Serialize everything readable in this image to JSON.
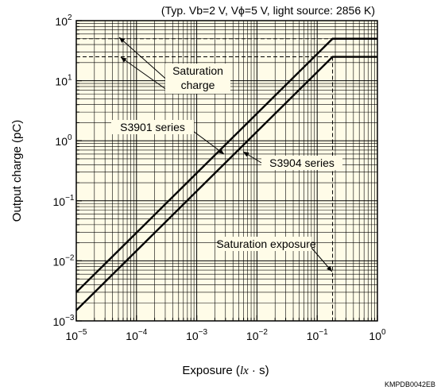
{
  "chart_data": {
    "type": "line",
    "title": "",
    "subtitle": "(Typ. Vb=2 V, Vϕ=5 V, light source: 2856 K)",
    "xlabel": "Exposure (lx · s)",
    "xlabel_parts": {
      "pre": "Exposure (",
      "unit": "lx",
      "post": " · s)"
    },
    "ylabel": "Output charge (pC)",
    "xscale": "log",
    "yscale": "log",
    "xlim": [
      1e-05,
      1
    ],
    "ylim": [
      0.001,
      100
    ],
    "grid": true,
    "plot_background": "#fffce8",
    "x_tick_labels": [
      {
        "base": "10",
        "exp": "−5",
        "value": 1e-05
      },
      {
        "base": "10",
        "exp": "−4",
        "value": 0.0001
      },
      {
        "base": "10",
        "exp": "−3",
        "value": 0.001
      },
      {
        "base": "10",
        "exp": "−2",
        "value": 0.01
      },
      {
        "base": "10",
        "exp": "−1",
        "value": 0.1
      },
      {
        "base": "10",
        "exp": "0",
        "value": 1
      }
    ],
    "y_tick_labels": [
      {
        "base": "10",
        "exp": "−3",
        "value": 0.001
      },
      {
        "base": "10",
        "exp": "−2",
        "value": 0.01
      },
      {
        "base": "10",
        "exp": "−1",
        "value": 0.1
      },
      {
        "base": "10",
        "exp": "0",
        "value": 1
      },
      {
        "base": "10",
        "exp": "1",
        "value": 10
      },
      {
        "base": "10",
        "exp": "2",
        "value": 100
      }
    ],
    "series": [
      {
        "name": "S3901 series",
        "x": [
          1e-05,
          0.18,
          1
        ],
        "y": [
          0.003,
          50,
          50
        ]
      },
      {
        "name": "S3904 series",
        "x": [
          1e-05,
          0.18,
          1
        ],
        "y": [
          0.0015,
          25,
          25
        ]
      }
    ],
    "annotations": {
      "saturation_charge": {
        "line1": "Saturation",
        "line2": "charge"
      },
      "s3901_label": "S3901 series",
      "s3904_label": "S3904 series",
      "saturation_exposure": "Saturation exposure"
    },
    "saturation_levels": [
      50,
      25
    ],
    "saturation_exposure_value": 0.18
  },
  "footer_code": "KMPDB0042EB"
}
